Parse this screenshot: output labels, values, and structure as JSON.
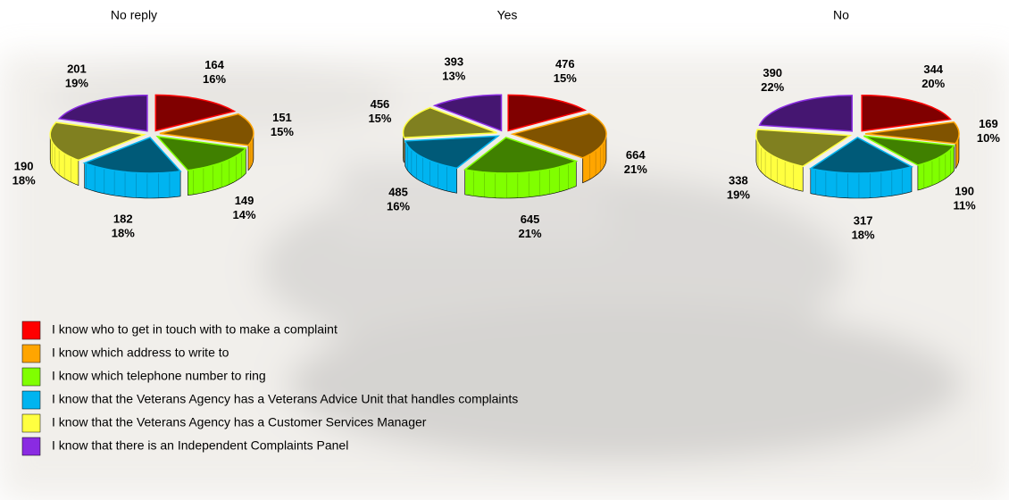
{
  "chart_data": {
    "type": "pie",
    "categories": [
      "I know who to get in touch with to make a complaint",
      "I know which address to write to",
      "I know which telephone number to ring",
      "I know that the Veterans Agency has a Veterans Advice Unit that handles complaints",
      "I know that the Veterans Agency has a Customer Services Manager",
      "I know that there is an Independent Complaints Panel"
    ],
    "colors": [
      "#ff0000",
      "#ffa500",
      "#80ff00",
      "#00b4f0",
      "#ffff40",
      "#8a2be2"
    ],
    "series": [
      {
        "name": "No reply",
        "values": [
          164,
          151,
          149,
          182,
          190,
          201
        ],
        "percent_labels": [
          "16%",
          "15%",
          "14%",
          "18%",
          "18%",
          "19%"
        ]
      },
      {
        "name": "Yes",
        "values": [
          476,
          664,
          645,
          485,
          456,
          393
        ],
        "percent_labels": [
          "15%",
          "21%",
          "21%",
          "16%",
          "15%",
          "13%"
        ]
      },
      {
        "name": "No",
        "values": [
          344,
          169,
          190,
          317,
          338,
          390
        ],
        "percent_labels": [
          "20%",
          "10%",
          "11%",
          "18%",
          "19%",
          "22%"
        ]
      }
    ]
  }
}
